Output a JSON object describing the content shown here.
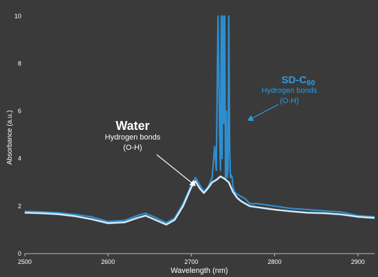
{
  "chart_data": {
    "type": "line",
    "xlabel": "Wavelength (nm)",
    "ylabel": "Absorbance (a.u.)",
    "xlim": [
      2500,
      2920
    ],
    "ylim": [
      0,
      10.5
    ],
    "x_ticks": [
      "2500",
      "2600",
      "2700",
      "2800",
      "2900"
    ],
    "y_ticks": [
      "0",
      "2",
      "4",
      "6",
      "8",
      "10"
    ],
    "grid": "off",
    "legend": "none",
    "background": "#3a3a3a",
    "series": [
      {
        "name": "SD-C60",
        "color": "#2e8fd0",
        "x": [
          2500,
          2520,
          2540,
          2560,
          2580,
          2600,
          2620,
          2635,
          2645,
          2655,
          2670,
          2680,
          2690,
          2700,
          2705,
          2710,
          2715,
          2720,
          2725,
          2728,
          2730,
          2732,
          2734,
          2735,
          2736,
          2737,
          2738,
          2739,
          2740,
          2741,
          2742,
          2743,
          2744,
          2745,
          2746,
          2747,
          2748,
          2749,
          2750,
          2752,
          2755,
          2760,
          2765,
          2770,
          2780,
          2790,
          2800,
          2820,
          2840,
          2860,
          2880,
          2900,
          2920
        ],
        "y": [
          1.78,
          1.76,
          1.72,
          1.65,
          1.55,
          1.35,
          1.4,
          1.6,
          1.7,
          1.55,
          1.3,
          1.5,
          2.1,
          2.9,
          3.2,
          2.9,
          2.6,
          2.8,
          3.2,
          4.5,
          3.5,
          10.0,
          5.0,
          3.5,
          10.0,
          4.0,
          10.0,
          5.5,
          10.0,
          3.2,
          6.0,
          3.2,
          3.5,
          10.0,
          4.5,
          3.2,
          3.3,
          3.2,
          2.8,
          2.6,
          2.5,
          2.4,
          2.3,
          2.1,
          2.1,
          2.05,
          2.0,
          1.9,
          1.85,
          1.8,
          1.75,
          1.6,
          1.55
        ]
      },
      {
        "name": "Water",
        "color": "#cfe8f7",
        "x": [
          2500,
          2520,
          2540,
          2560,
          2580,
          2600,
          2620,
          2635,
          2645,
          2655,
          2670,
          2680,
          2690,
          2700,
          2705,
          2710,
          2715,
          2720,
          2725,
          2730,
          2735,
          2740,
          2745,
          2750,
          2755,
          2760,
          2770,
          2780,
          2790,
          2800,
          2820,
          2840,
          2860,
          2880,
          2900,
          2920
        ],
        "y": [
          1.72,
          1.7,
          1.66,
          1.58,
          1.45,
          1.28,
          1.32,
          1.5,
          1.6,
          1.45,
          1.22,
          1.42,
          2.0,
          2.8,
          3.05,
          2.75,
          2.55,
          2.75,
          3.0,
          3.1,
          3.25,
          3.15,
          3.0,
          2.6,
          2.35,
          2.2,
          2.0,
          1.95,
          1.9,
          1.85,
          1.78,
          1.72,
          1.7,
          1.65,
          1.55,
          1.5
        ]
      }
    ],
    "annotations": {
      "water_title": "Water",
      "water_sub1": "Hydrogen bonds",
      "water_sub2": "(O-H)",
      "sd_title": "SD-C",
      "sd_subscript": "60",
      "sd_sub1": "Hydrogen bonds",
      "sd_sub2": "(O-H)"
    }
  }
}
